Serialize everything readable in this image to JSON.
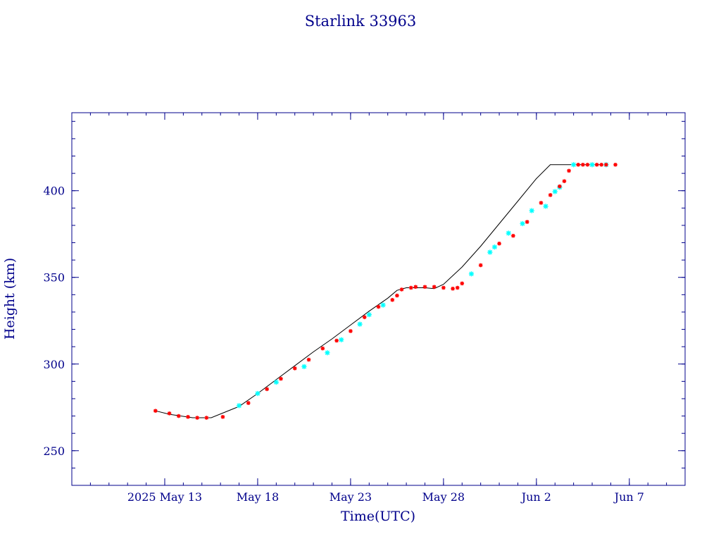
{
  "chart_data": {
    "type": "line",
    "title": "Starlink 33963",
    "xlabel": "Time(UTC)",
    "ylabel": "Height (km)",
    "xlim": [
      "2025-05-08",
      "2025-06-10"
    ],
    "ylim": [
      230,
      445
    ],
    "x_ticks": [
      {
        "date": "2025-05-13",
        "label": "2025 May 13"
      },
      {
        "date": "2025-05-18",
        "label": "May 18"
      },
      {
        "date": "2025-05-23",
        "label": "May 23"
      },
      {
        "date": "2025-05-28",
        "label": "May 28"
      },
      {
        "date": "2025-06-02",
        "label": "Jun  2"
      },
      {
        "date": "2025-06-07",
        "label": "Jun  7"
      }
    ],
    "y_ticks": [
      {
        "value": 250,
        "label": "250"
      },
      {
        "value": 300,
        "label": "300"
      },
      {
        "value": 350,
        "label": "350"
      },
      {
        "value": 400,
        "label": "400"
      }
    ],
    "grid": false,
    "colors": {
      "axis": "#00008b",
      "line": "#000000",
      "marker_red": "#ff0000",
      "marker_cyan": "#00ffff"
    },
    "series": [
      {
        "line": [
          [
            "2025-05-12T12:00",
            273.0
          ],
          [
            "2025-05-13T06:00",
            271.0
          ],
          [
            "2025-05-14T12:00",
            269.0
          ],
          [
            "2025-05-15T12:00",
            269.0
          ],
          [
            "2025-05-17T00:00",
            275.5
          ],
          [
            "2025-05-18T00:00",
            283.0
          ],
          [
            "2025-05-19T00:00",
            291.0
          ],
          [
            "2025-05-20T00:00",
            299.0
          ],
          [
            "2025-05-21T00:00",
            307.0
          ],
          [
            "2025-05-22T00:00",
            314.5
          ],
          [
            "2025-05-23T00:00",
            322.5
          ],
          [
            "2025-05-24T00:00",
            330.5
          ],
          [
            "2025-05-25T00:00",
            338.0
          ],
          [
            "2025-05-25T12:00",
            342.5
          ],
          [
            "2025-05-26T00:00",
            344.0
          ],
          [
            "2025-05-27T00:00",
            344.0
          ],
          [
            "2025-05-27T12:00",
            343.5
          ],
          [
            "2025-05-28T00:00",
            346.0
          ],
          [
            "2025-05-29T00:00",
            356.0
          ],
          [
            "2025-05-30T00:00",
            368.0
          ],
          [
            "2025-05-31T00:00",
            381.0
          ],
          [
            "2025-06-01T00:00",
            394.0
          ],
          [
            "2025-06-02T00:00",
            407.0
          ],
          [
            "2025-06-02T18:00",
            415.0
          ],
          [
            "2025-06-04T00:00",
            415.0
          ],
          [
            "2025-06-05T12:00",
            415.0
          ]
        ]
      },
      {
        "name": "",
        "red_points": [
          [
            "2025-05-12T12:00",
            273.0
          ],
          [
            "2025-05-13T06:00",
            271.5
          ],
          [
            "2025-05-13T18:00",
            270.0
          ],
          [
            "2025-05-14T06:00",
            269.5
          ],
          [
            "2025-05-14T18:00",
            269.0
          ],
          [
            "2025-05-15T06:00",
            269.0
          ],
          [
            "2025-05-16T03:00",
            269.5
          ],
          [
            "2025-05-17T12:00",
            277.5
          ],
          [
            "2025-05-18T12:00",
            285.5
          ],
          [
            "2025-05-19T06:00",
            291.5
          ],
          [
            "2025-05-20T00:00",
            297.5
          ],
          [
            "2025-05-20T18:00",
            302.5
          ],
          [
            "2025-05-21T12:00",
            309.0
          ],
          [
            "2025-05-22T06:00",
            313.5
          ],
          [
            "2025-05-23T00:00",
            319.0
          ],
          [
            "2025-05-23T18:00",
            327.0
          ],
          [
            "2025-05-24T12:00",
            333.0
          ],
          [
            "2025-05-25T06:00",
            337.0
          ],
          [
            "2025-05-25T12:00",
            339.5
          ],
          [
            "2025-05-25T18:00",
            343.0
          ],
          [
            "2025-05-26T06:00",
            344.0
          ],
          [
            "2025-05-26T12:00",
            344.5
          ],
          [
            "2025-05-27T00:00",
            344.5
          ],
          [
            "2025-05-27T12:00",
            344.5
          ],
          [
            "2025-05-28T00:00",
            344.0
          ],
          [
            "2025-05-28T12:00",
            343.5
          ],
          [
            "2025-05-28T18:00",
            344.0
          ],
          [
            "2025-05-29T00:00",
            346.5
          ],
          [
            "2025-05-30T00:00",
            357.0
          ],
          [
            "2025-05-31T00:00",
            369.5
          ],
          [
            "2025-05-31T18:00",
            374.0
          ],
          [
            "2025-06-01T12:00",
            382.0
          ],
          [
            "2025-06-02T06:00",
            393.0
          ],
          [
            "2025-06-02T18:00",
            397.5
          ],
          [
            "2025-06-03T06:00",
            402.5
          ],
          [
            "2025-06-03T12:00",
            405.5
          ],
          [
            "2025-06-03T18:00",
            411.5
          ],
          [
            "2025-06-04T06:00",
            415.0
          ],
          [
            "2025-06-04T12:00",
            415.0
          ],
          [
            "2025-06-04T18:00",
            415.0
          ],
          [
            "2025-06-05T06:00",
            415.0
          ],
          [
            "2025-06-05T12:00",
            415.0
          ],
          [
            "2025-06-05T18:00",
            415.0
          ],
          [
            "2025-06-06T06:00",
            415.0
          ]
        ],
        "cyan_points": [
          [
            "2025-05-17T00:00",
            276.0
          ],
          [
            "2025-05-18T00:00",
            283.0
          ],
          [
            "2025-05-19T00:00",
            289.5
          ],
          [
            "2025-05-20T12:00",
            298.5
          ],
          [
            "2025-05-21T18:00",
            306.5
          ],
          [
            "2025-05-22T12:00",
            314.0
          ],
          [
            "2025-05-23T12:00",
            323.0
          ],
          [
            "2025-05-24T00:00",
            328.5
          ],
          [
            "2025-05-24T18:00",
            334.0
          ],
          [
            "2025-05-29T12:00",
            352.0
          ],
          [
            "2025-05-30T12:00",
            364.5
          ],
          [
            "2025-05-30T18:00",
            367.5
          ],
          [
            "2025-05-31T12:00",
            375.5
          ],
          [
            "2025-06-01T06:00",
            381.0
          ],
          [
            "2025-06-01T18:00",
            388.5
          ],
          [
            "2025-06-02T12:00",
            391.0
          ],
          [
            "2025-06-03T00:00",
            399.5
          ],
          [
            "2025-06-03T06:00",
            402.0
          ],
          [
            "2025-06-04T00:00",
            415.0
          ],
          [
            "2025-06-05T00:00",
            415.0
          ],
          [
            "2025-06-05T18:00",
            415.0
          ]
        ]
      }
    ]
  }
}
